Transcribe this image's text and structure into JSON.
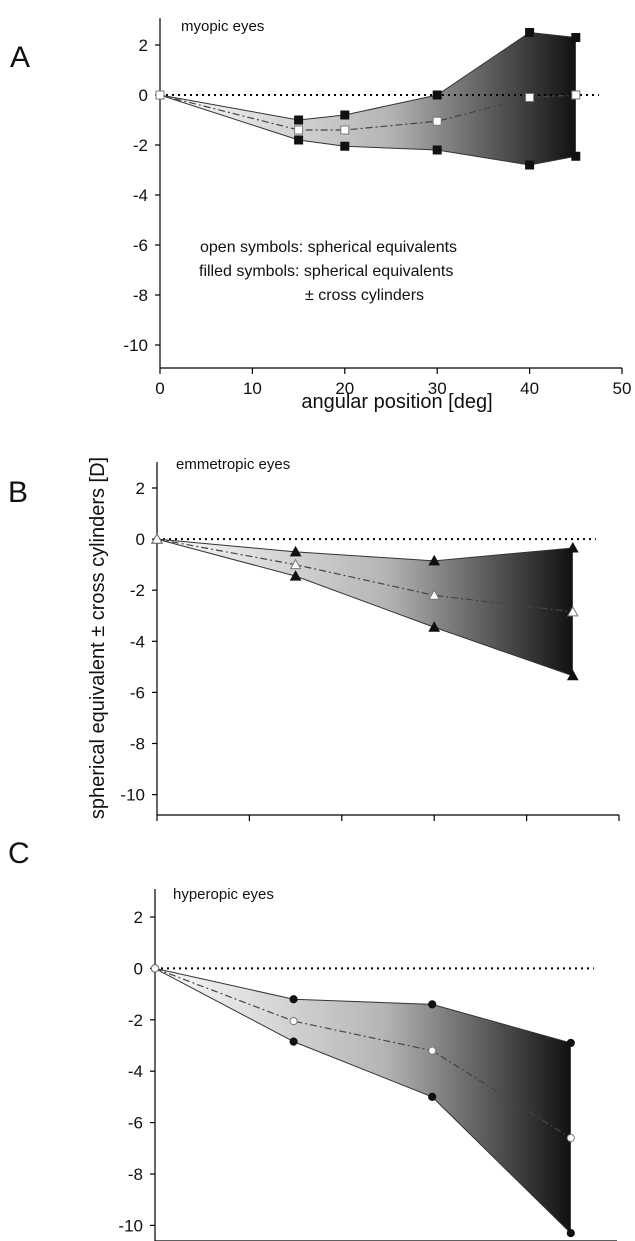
{
  "figure": {
    "xlabel": "angular position [deg]",
    "ylabel": "spherical equivalent ± cross cylinders [D]",
    "notes": {
      "open": "open symbols: spherical equivalents",
      "filled_1": "filled symbols: spherical equivalents",
      "filled_2": "± cross cylinders"
    },
    "colors": {
      "shade_light": "#fbfbfb",
      "shade_dark": "#111111",
      "line": "#333333",
      "reference": "#000000"
    }
  },
  "chart_data": [
    {
      "type": "line",
      "panel": "A",
      "title": "myopic eyes",
      "marker": "square",
      "xlim": [
        0,
        50
      ],
      "ylim": [
        -11,
        3
      ],
      "xticks": [
        0,
        10,
        20,
        30,
        40,
        50
      ],
      "yticks": [
        2,
        0,
        -2,
        -4,
        -6,
        -8,
        -10
      ],
      "show_x_tick_labels": true,
      "x": [
        0,
        15,
        20,
        30,
        40,
        45
      ],
      "series": [
        {
          "role": "upper",
          "filled": true,
          "values": [
            0,
            -1.0,
            -0.8,
            0.0,
            2.5,
            2.3
          ]
        },
        {
          "role": "mean",
          "filled": false,
          "values": [
            0,
            -1.4,
            -1.4,
            -1.05,
            -0.1,
            0.0
          ]
        },
        {
          "role": "lower",
          "filled": true,
          "values": [
            0,
            -1.8,
            -2.05,
            -2.2,
            -2.8,
            -2.45
          ]
        }
      ]
    },
    {
      "type": "line",
      "panel": "B",
      "title": "emmetropic eyes",
      "marker": "triangle",
      "xlim": [
        0,
        50
      ],
      "ylim": [
        -11,
        3
      ],
      "xticks": [
        0,
        10,
        20,
        30,
        40,
        50
      ],
      "yticks": [
        2,
        0,
        -2,
        -4,
        -6,
        -8,
        -10
      ],
      "show_x_tick_labels": false,
      "x": [
        0,
        15,
        30,
        45
      ],
      "series": [
        {
          "role": "upper",
          "filled": true,
          "values": [
            0,
            -0.5,
            -0.85,
            -0.35
          ]
        },
        {
          "role": "mean",
          "filled": false,
          "values": [
            0,
            -1.0,
            -2.2,
            -2.85
          ]
        },
        {
          "role": "lower",
          "filled": true,
          "values": [
            0,
            -1.45,
            -3.45,
            -5.35
          ]
        }
      ]
    },
    {
      "type": "line",
      "panel": "C",
      "title": "hyperopic eyes",
      "marker": "circle",
      "xlim": [
        0,
        50
      ],
      "ylim": [
        -11,
        3
      ],
      "xticks": [
        0,
        10,
        20,
        30,
        40,
        50
      ],
      "yticks": [
        2,
        0,
        -2,
        -4,
        -6,
        -8,
        -10
      ],
      "show_x_tick_labels": false,
      "x": [
        0,
        15,
        30,
        45
      ],
      "series": [
        {
          "role": "upper",
          "filled": true,
          "values": [
            0,
            -1.2,
            -1.4,
            -2.9
          ]
        },
        {
          "role": "mean",
          "filled": false,
          "values": [
            0,
            -2.05,
            -3.2,
            -6.6
          ]
        },
        {
          "role": "lower",
          "filled": true,
          "values": [
            0,
            -2.85,
            -5.0,
            -10.3
          ]
        }
      ]
    }
  ]
}
